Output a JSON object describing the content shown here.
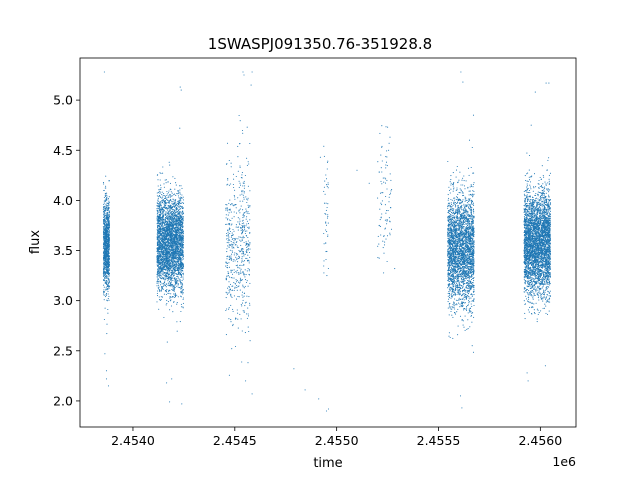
{
  "chart_data": {
    "type": "scatter",
    "title": "1SWASPJ091350.76-351928.8",
    "xlabel": "time",
    "ylabel": "flux",
    "x_offset_label": "1e6",
    "xlim": [
      2453740,
      2456175
    ],
    "ylim": [
      1.74,
      5.42
    ],
    "x_ticks": [
      2454000,
      2454500,
      2455000,
      2455500,
      2456000
    ],
    "x_tick_labels": [
      "2.4540",
      "2.4545",
      "2.4550",
      "2.4555",
      "2.4560"
    ],
    "y_ticks": [
      2.0,
      2.5,
      3.0,
      3.5,
      4.0,
      4.5,
      5.0
    ],
    "y_tick_labels": [
      "2.0",
      "2.5",
      "3.0",
      "3.5",
      "4.0",
      "4.5",
      "5.0"
    ],
    "grid": false,
    "point_color": "#1f77b4",
    "seasons": [
      {
        "x_start": 2453855,
        "x_end": 2453885,
        "y_mean": 3.55,
        "y_std": 0.22,
        "n": 1100
      },
      {
        "x_start": 2454118,
        "x_end": 2454248,
        "y_mean": 3.57,
        "y_std": 0.24,
        "n": 3400
      },
      {
        "x_start": 2454455,
        "x_end": 2454575,
        "y_mean": 3.55,
        "y_std": 0.42,
        "n": 550
      },
      {
        "x_start": 2454935,
        "x_end": 2454960,
        "y_mean": 3.85,
        "y_std": 0.32,
        "n": 45
      },
      {
        "x_start": 2455200,
        "x_end": 2455270,
        "y_mean": 4.05,
        "y_std": 0.32,
        "n": 90
      },
      {
        "x_start": 2455545,
        "x_end": 2455675,
        "y_mean": 3.52,
        "y_std": 0.28,
        "n": 3000
      },
      {
        "x_start": 2455920,
        "x_end": 2456050,
        "y_mean": 3.57,
        "y_std": 0.25,
        "n": 3800
      }
    ],
    "outliers": [
      {
        "x": 2453860,
        "y": 5.28
      },
      {
        "x": 2453862,
        "y": 2.47
      },
      {
        "x": 2453870,
        "y": 2.3
      },
      {
        "x": 2453880,
        "y": 2.15
      },
      {
        "x": 2453870,
        "y": 2.22
      },
      {
        "x": 2454165,
        "y": 2.18
      },
      {
        "x": 2454190,
        "y": 2.22
      },
      {
        "x": 2454232,
        "y": 5.13
      },
      {
        "x": 2454237,
        "y": 5.1
      },
      {
        "x": 2454240,
        "y": 1.97
      },
      {
        "x": 2454180,
        "y": 1.99
      },
      {
        "x": 2454230,
        "y": 4.72
      },
      {
        "x": 2454540,
        "y": 5.28
      },
      {
        "x": 2454545,
        "y": 5.25
      },
      {
        "x": 2454553,
        "y": 2.2
      },
      {
        "x": 2454585,
        "y": 5.28
      },
      {
        "x": 2454580,
        "y": 5.15
      },
      {
        "x": 2454585,
        "y": 2.07
      },
      {
        "x": 2454790,
        "y": 2.32
      },
      {
        "x": 2454845,
        "y": 2.11
      },
      {
        "x": 2454912,
        "y": 2.02
      },
      {
        "x": 2454920,
        "y": 4.43
      },
      {
        "x": 2454960,
        "y": 1.92
      },
      {
        "x": 2454950,
        "y": 1.9
      },
      {
        "x": 2454952,
        "y": 3.25
      },
      {
        "x": 2455100,
        "y": 4.3
      },
      {
        "x": 2455160,
        "y": 4.17
      },
      {
        "x": 2455250,
        "y": 4.73
      },
      {
        "x": 2455262,
        "y": 4.63
      },
      {
        "x": 2455285,
        "y": 3.32
      },
      {
        "x": 2455610,
        "y": 5.28
      },
      {
        "x": 2455620,
        "y": 5.18
      },
      {
        "x": 2455615,
        "y": 1.93
      },
      {
        "x": 2455608,
        "y": 2.05
      },
      {
        "x": 2455672,
        "y": 4.85
      },
      {
        "x": 2455975,
        "y": 5.08
      },
      {
        "x": 2455955,
        "y": 4.75
      },
      {
        "x": 2456028,
        "y": 5.17
      },
      {
        "x": 2456042,
        "y": 5.17
      },
      {
        "x": 2456025,
        "y": 2.35
      },
      {
        "x": 2455940,
        "y": 2.2
      },
      {
        "x": 2455935,
        "y": 2.28
      }
    ]
  }
}
